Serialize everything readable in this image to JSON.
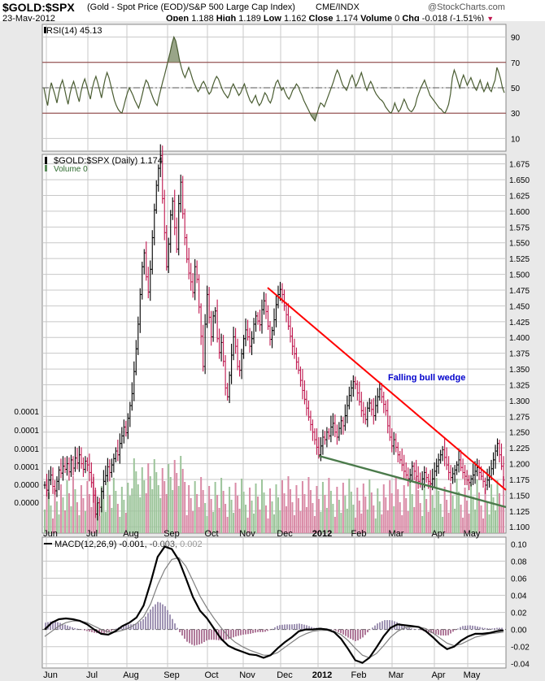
{
  "header": {
    "symbol": "$GOLD:$SPX",
    "description": "(Gold - Spot Price (EOD)/S&P 500 Large Cap Index)",
    "exchange": "CME/INDX",
    "brand": "@StockCharts.com",
    "date": "23-May-2012",
    "open_label": "Open",
    "open": "1.188",
    "high_label": "High",
    "high": "1.189",
    "low_label": "Low",
    "low": "1.162",
    "close_label": "Close",
    "close": "1.174",
    "volume_label": "Volume",
    "volume": "0",
    "chg_label": "Chg",
    "chg": "-0.018 (-1.51%)"
  },
  "colors": {
    "panel_bg": "#ffffff",
    "outer_bg": "#e9e9e9",
    "grid": "#c8c8c8",
    "up_bar": "#000000",
    "down_bar": "#c0174f",
    "vol_up": "#9cc49a",
    "vol_down": "#d98aa6",
    "rsi_line": "#4a5d32",
    "rsi_fill": "#7f8f6a",
    "macd_line": "#000000",
    "signal_line": "#808080",
    "hist": "#a094b4",
    "trend_red": "#ff0000",
    "trend_green": "#4a7a4a",
    "annotation": "#0000cc",
    "chg_arrow": "#c0174f"
  },
  "chart_data": [
    {
      "type": "line",
      "panel": "rsi",
      "label": "RSI(14) 45.13",
      "ylim": [
        0,
        100
      ],
      "yticks": [
        10,
        30,
        50,
        70,
        90
      ],
      "reference_lines": [
        30,
        50,
        70
      ],
      "series": [
        {
          "values": [
            50,
            42,
            36,
            47,
            54,
            49,
            44,
            38,
            46,
            52,
            56,
            50,
            43,
            37,
            45,
            51,
            55,
            50,
            44,
            39,
            47,
            53,
            57,
            52,
            46,
            41,
            49,
            55,
            59,
            54,
            48,
            42,
            50,
            57,
            62,
            58,
            52,
            46,
            40,
            36,
            33,
            31,
            30,
            35,
            41,
            46,
            50,
            47,
            44,
            40,
            37,
            34,
            39,
            45,
            51,
            56,
            54,
            49,
            45,
            41,
            38,
            36,
            43,
            49,
            55,
            60,
            66,
            72,
            78,
            85,
            90,
            87,
            80,
            72,
            66,
            61,
            58,
            62,
            66,
            62,
            57,
            53,
            50,
            47,
            49,
            53,
            55,
            52,
            48,
            45,
            47,
            52,
            56,
            59,
            57,
            53,
            49,
            46,
            44,
            42,
            45,
            50,
            53,
            50,
            47,
            44,
            46,
            50,
            53,
            48,
            44,
            40,
            38,
            41,
            44,
            39,
            36,
            38,
            42,
            46,
            44,
            40,
            38,
            42,
            49,
            54,
            56,
            52,
            48,
            50,
            46,
            43,
            41,
            44,
            48,
            50,
            53,
            51,
            47,
            44,
            40,
            37,
            34,
            31,
            28,
            26,
            24,
            29,
            34,
            38,
            37,
            35,
            39,
            43,
            47,
            51,
            55,
            60,
            64,
            61,
            56,
            52,
            50,
            48,
            52,
            57,
            60,
            56,
            51,
            54,
            58,
            62,
            57,
            52,
            48,
            52,
            55,
            52,
            48,
            45,
            43,
            41,
            40,
            38,
            35,
            33,
            31,
            30,
            33,
            38,
            34,
            31,
            33,
            37,
            41,
            38,
            34,
            32,
            31,
            33,
            36,
            42,
            46,
            50,
            53,
            56,
            52,
            48,
            44,
            42,
            40,
            38,
            36,
            34,
            33,
            31,
            30,
            33,
            37,
            45,
            58,
            64,
            60,
            55,
            50,
            56,
            60,
            56,
            52,
            55,
            58,
            54,
            50,
            48,
            52,
            56,
            51,
            47,
            50,
            54,
            49,
            47,
            52,
            56,
            66,
            62,
            57,
            50,
            46
          ]
        }
      ]
    },
    {
      "type": "ohlc",
      "panel": "price",
      "label": "$GOLD:$SPX (Daily) 1.174",
      "volume_label": "Volume 0",
      "ylim": [
        1.09,
        1.69
      ],
      "yticks": [
        1.1,
        1.125,
        1.15,
        1.175,
        1.2,
        1.225,
        1.25,
        1.275,
        1.3,
        1.325,
        1.35,
        1.375,
        1.4,
        1.425,
        1.45,
        1.475,
        1.5,
        1.525,
        1.55,
        1.575,
        1.6,
        1.625,
        1.65,
        1.675
      ],
      "ytick_labels": [
        "1.100",
        "1.125",
        "1.150",
        "1.175",
        "1.200",
        "1.225",
        "1.250",
        "1.275",
        "1.300",
        "1.325",
        "1.350",
        "1.375",
        "1.400",
        "1.425",
        "1.450",
        "1.475",
        "1.500",
        "1.525",
        "1.550",
        "1.575",
        "1.600",
        "1.625",
        "1.650",
        "1.675"
      ],
      "volume_axis_labels": [
        "0.0000",
        "0.0000",
        "0.0001",
        "0.0001",
        "0.0001",
        "0.0001"
      ],
      "closes": [
        1.166,
        1.158,
        1.174,
        1.182,
        1.164,
        1.157,
        1.172,
        1.19,
        1.185,
        1.196,
        1.191,
        1.2,
        1.187,
        1.206,
        1.193,
        1.209,
        1.201,
        1.214,
        1.2,
        1.191,
        1.204,
        1.198,
        1.186,
        1.17,
        1.15,
        1.12,
        1.138,
        1.131,
        1.156,
        1.172,
        1.181,
        1.195,
        1.186,
        1.198,
        1.208,
        1.22,
        1.214,
        1.232,
        1.244,
        1.258,
        1.249,
        1.272,
        1.292,
        1.311,
        1.346,
        1.382,
        1.421,
        1.468,
        1.512,
        1.534,
        1.496,
        1.472,
        1.508,
        1.558,
        1.602,
        1.641,
        1.668,
        1.688,
        1.62,
        1.566,
        1.512,
        1.548,
        1.594,
        1.616,
        1.574,
        1.54,
        1.612,
        1.646,
        1.596,
        1.558,
        1.524,
        1.502,
        1.488,
        1.471,
        1.512,
        1.492,
        1.448,
        1.402,
        1.354,
        1.421,
        1.468,
        1.432,
        1.401,
        1.434,
        1.442,
        1.398,
        1.376,
        1.392,
        1.362,
        1.32,
        1.306,
        1.34,
        1.372,
        1.401,
        1.386,
        1.354,
        1.348,
        1.374,
        1.398,
        1.412,
        1.401,
        1.386,
        1.398,
        1.421,
        1.434,
        1.426,
        1.42,
        1.444,
        1.458,
        1.441,
        1.418,
        1.397,
        1.411,
        1.428,
        1.452,
        1.468,
        1.476,
        1.468,
        1.45,
        1.436,
        1.418,
        1.402,
        1.386,
        1.374,
        1.361,
        1.348,
        1.332,
        1.316,
        1.302,
        1.288,
        1.274,
        1.262,
        1.25,
        1.238,
        1.226,
        1.214,
        1.228,
        1.242,
        1.238,
        1.25,
        1.244,
        1.258,
        1.264,
        1.25,
        1.242,
        1.256,
        1.268,
        1.26,
        1.276,
        1.292,
        1.308,
        1.32,
        1.33,
        1.326,
        1.312,
        1.298,
        1.284,
        1.278,
        1.27,
        1.288,
        1.296,
        1.286,
        1.276,
        1.292,
        1.306,
        1.318,
        1.306,
        1.294,
        1.284,
        1.26,
        1.242,
        1.228,
        1.238,
        1.226,
        1.214,
        1.206,
        1.198,
        1.188,
        1.182,
        1.176,
        1.182,
        1.196,
        1.188,
        1.18,
        1.172,
        1.168,
        1.176,
        1.186,
        1.178,
        1.172,
        1.168,
        1.176,
        1.188,
        1.196,
        1.206,
        1.214,
        1.222,
        1.21,
        1.198,
        1.186,
        1.178,
        1.184,
        1.19,
        1.198,
        1.206,
        1.194,
        1.186,
        1.18,
        1.174,
        1.17,
        1.176,
        1.182,
        1.188,
        1.194,
        1.186,
        1.18,
        1.172,
        1.166,
        1.174,
        1.18,
        1.192,
        1.206,
        1.22,
        1.232,
        1.214,
        1.196,
        1.174
      ],
      "x_ticks": [
        "Jun",
        "Jul",
        "Aug",
        "Sep",
        "Oct",
        "Nov",
        "Dec",
        "2012",
        "Feb",
        "Mar",
        "Apr",
        "May"
      ],
      "annotations": [
        "Falling bull wedge"
      ]
    },
    {
      "type": "line",
      "panel": "macd",
      "label": "MACD(12,26,9) -0.001, -0.003, 0.002",
      "ylim": [
        -0.045,
        0.108
      ],
      "yticks": [
        -0.04,
        -0.02,
        0.0,
        0.02,
        0.04,
        0.06,
        0.08,
        0.1
      ],
      "ytick_labels": [
        "-0.04",
        "-0.02",
        "0.00",
        "0.02",
        "0.04",
        "0.06",
        "0.08",
        "0.10"
      ],
      "x_ticks": [
        "Jun",
        "Jul",
        "Aug",
        "Sep",
        "Oct",
        "Nov",
        "Dec",
        "2012",
        "Feb",
        "Mar",
        "Apr",
        "May"
      ],
      "series": [
        {
          "name": "MACD(12,26,9)",
          "values": [
            0.0,
            0.008,
            0.012,
            0.013,
            0.012,
            0.01,
            0.006,
            0.0,
            -0.005,
            -0.006,
            -0.002,
            0.004,
            0.008,
            0.014,
            0.028,
            0.055,
            0.085,
            0.097,
            0.094,
            0.081,
            0.06,
            0.038,
            0.022,
            0.013,
            0.001,
            -0.011,
            -0.019,
            -0.023,
            -0.026,
            -0.029,
            -0.03,
            -0.033,
            -0.03,
            -0.022,
            -0.015,
            -0.009,
            -0.002,
            0.0,
            0.0,
            0.001,
            0.0,
            -0.003,
            -0.011,
            -0.023,
            -0.036,
            -0.039,
            -0.033,
            -0.021,
            -0.008,
            0.002,
            0.006,
            0.005,
            0.004,
            0.003,
            -0.002,
            -0.009,
            -0.017,
            -0.023,
            -0.02,
            -0.013,
            -0.008,
            -0.005,
            -0.005,
            -0.004,
            -0.002,
            -0.001
          ]
        },
        {
          "name": "signal",
          "values": [
            -0.008,
            -0.002,
            0.004,
            0.008,
            0.01,
            0.01,
            0.008,
            0.004,
            0.0,
            -0.003,
            -0.003,
            -0.001,
            0.002,
            0.007,
            0.015,
            0.03,
            0.052,
            0.07,
            0.082,
            0.084,
            0.074,
            0.057,
            0.039,
            0.025,
            0.013,
            0.002,
            -0.008,
            -0.015,
            -0.02,
            -0.024,
            -0.027,
            -0.03,
            -0.03,
            -0.027,
            -0.021,
            -0.015,
            -0.009,
            -0.005,
            -0.002,
            -0.001,
            -0.001,
            -0.002,
            -0.006,
            -0.013,
            -0.022,
            -0.03,
            -0.033,
            -0.028,
            -0.019,
            -0.009,
            -0.002,
            0.002,
            0.003,
            0.003,
            0.001,
            -0.004,
            -0.01,
            -0.016,
            -0.019,
            -0.017,
            -0.013,
            -0.009,
            -0.007,
            -0.005,
            -0.004,
            -0.003
          ]
        }
      ]
    }
  ]
}
